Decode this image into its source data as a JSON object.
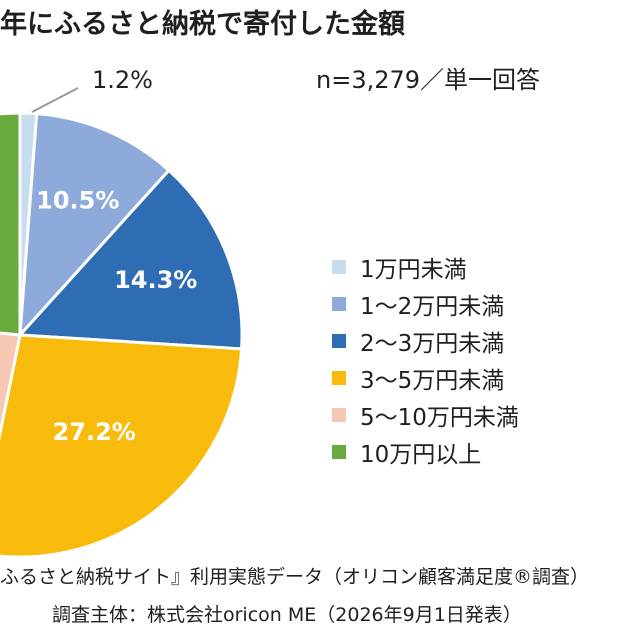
{
  "header": {
    "title": "年にふるさと納税で寄付した金額",
    "sample": "n=3,279／単一回答"
  },
  "footer": {
    "source": "ふるさと納税サイト』利用実態データ（オリコン顧客満足度®調査）",
    "surveyor": "調査主体：株式会社oricon ME（2026年9月1日発表）"
  },
  "chart_data": {
    "type": "pie",
    "categories": [
      "1万円未満",
      "1～2万円未満",
      "2～3万円未満",
      "3～5万円未満",
      "5～10万円未満",
      "10万円以上"
    ],
    "values": [
      1.2,
      10.5,
      14.3,
      27.2,
      null,
      null
    ],
    "data_labels": [
      "1.2%",
      "10.5%",
      "14.3%",
      "27.2%",
      "",
      ""
    ],
    "colors": [
      "#c6dcef",
      "#8eaadb",
      "#2e6db4",
      "#f9bb0b",
      "#f6c8b4",
      "#6aaa3f"
    ],
    "legend_position": "right"
  }
}
